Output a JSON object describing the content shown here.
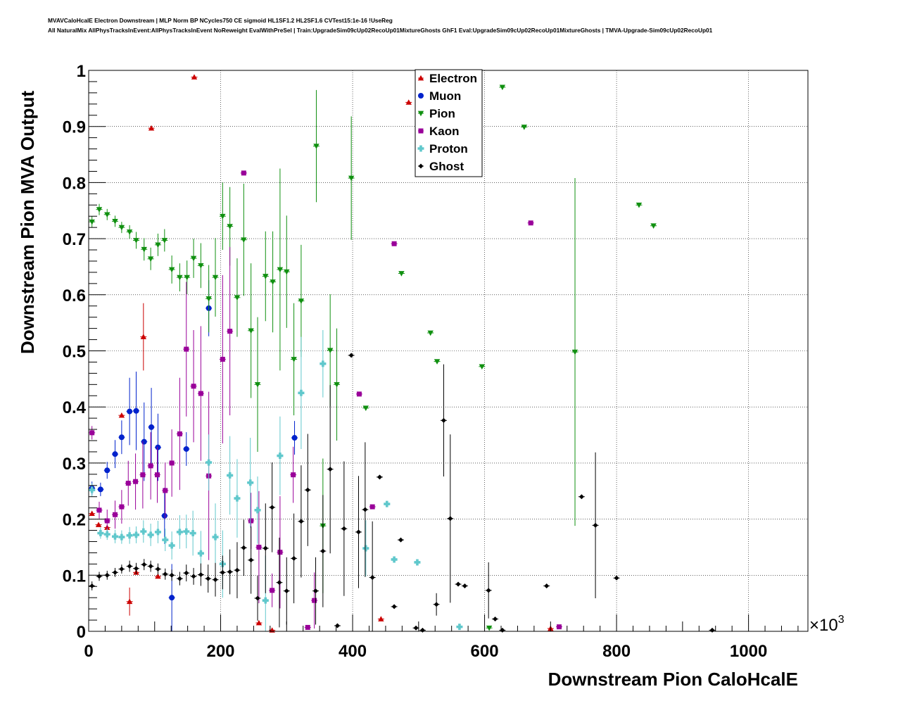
{
  "header": {
    "line1": "MVAVCaloHcalE Electron Downstream | MLP Norm BP NCycles750 CE sigmoid HL1SF1.2 HL2SF1.6 CVTest15:1e-16 !UseReg",
    "line2": "All NaturalMix AllPhysTracksInEvent:AllPhysTracksInEvent NoReweight EvalWithPreSel | Train:UpgradeSim09cUp02RecoUp01MixtureGhosts GhF1 Eval:UpgradeSim09cUp02RecoUp01MixtureGhosts | TMVA-Upgrade-Sim09cUp02RecoUp01"
  },
  "chart_data": {
    "type": "scatter",
    "title": "",
    "xlabel": "Downstream Pion CaloHcalE",
    "ylabel": "Downstream Pion MVA Output",
    "x_multiplier_label": "×10",
    "x_multiplier_exp": "3",
    "xlim": [
      0,
      1090
    ],
    "ylim": [
      0,
      1
    ],
    "xticks": [
      "0",
      "200",
      "400",
      "600",
      "800",
      "1000"
    ],
    "xtick_values": [
      0,
      200,
      400,
      600,
      800,
      1000
    ],
    "yticks": [
      "0",
      "0.1",
      "0.2",
      "0.3",
      "0.4",
      "0.5",
      "0.6",
      "0.7",
      "0.8",
      "0.9",
      "1"
    ],
    "ytick_values": [
      0,
      0.1,
      0.2,
      0.3,
      0.4,
      0.5,
      0.6,
      0.7,
      0.8,
      0.9,
      1
    ],
    "grid": true,
    "legend_position": "top-center",
    "series": [
      {
        "name": "Electron",
        "color": "#cc0000",
        "marker": "triangle-up",
        "points": [
          [
            5,
            0.21,
            0
          ],
          [
            15,
            0.19,
            0
          ],
          [
            28,
            0.185,
            0
          ],
          [
            50,
            0.385,
            0
          ],
          [
            62,
            0.053,
            0.025
          ],
          [
            72,
            0.105,
            0
          ],
          [
            83,
            0.525,
            0.06
          ],
          [
            95,
            0.897,
            0
          ],
          [
            105,
            0.098,
            0
          ],
          [
            160,
            0.988,
            0
          ],
          [
            258,
            0.015,
            0
          ],
          [
            278,
            0.002,
            0
          ],
          [
            443,
            0.022,
            0
          ],
          [
            485,
            0.943,
            0
          ],
          [
            700,
            0.005,
            0
          ]
        ]
      },
      {
        "name": "Muon",
        "color": "#0022cc",
        "marker": "circle",
        "points": [
          [
            5,
            0.255,
            0.012
          ],
          [
            18,
            0.253,
            0.012
          ],
          [
            28,
            0.287,
            0.015
          ],
          [
            40,
            0.316,
            0.025
          ],
          [
            50,
            0.346,
            0.03
          ],
          [
            62,
            0.392,
            0.06
          ],
          [
            72,
            0.393,
            0.07
          ],
          [
            84,
            0.338,
            0.07
          ],
          [
            95,
            0.364,
            0.07
          ],
          [
            105,
            0.328,
            0.06
          ],
          [
            115,
            0.206,
            0.05
          ],
          [
            126,
            0.06,
            0.06
          ],
          [
            148,
            0.325,
            0.03
          ],
          [
            182,
            0.576,
            0.05
          ],
          [
            312,
            0.345,
            0.03
          ]
        ]
      },
      {
        "name": "Pion",
        "color": "#109010",
        "marker": "triangle-down",
        "points": [
          [
            5,
            0.73,
            0.01
          ],
          [
            16,
            0.752,
            0.01
          ],
          [
            28,
            0.743,
            0.01
          ],
          [
            40,
            0.731,
            0.01
          ],
          [
            50,
            0.72,
            0.01
          ],
          [
            62,
            0.712,
            0.012
          ],
          [
            72,
            0.697,
            0.015
          ],
          [
            84,
            0.681,
            0.02
          ],
          [
            94,
            0.664,
            0.02
          ],
          [
            105,
            0.689,
            0.02
          ],
          [
            115,
            0.697,
            0.02
          ],
          [
            126,
            0.645,
            0.025
          ],
          [
            138,
            0.631,
            0.025
          ],
          [
            149,
            0.631,
            0.03
          ],
          [
            159,
            0.665,
            0.035
          ],
          [
            170,
            0.652,
            0.04
          ],
          [
            182,
            0.593,
            0.06
          ],
          [
            192,
            0.631,
            0.07
          ],
          [
            203,
            0.74,
            0.06
          ],
          [
            214,
            0.722,
            0.07
          ],
          [
            225,
            0.595,
            0.07
          ],
          [
            235,
            0.698,
            0.1
          ],
          [
            246,
            0.536,
            0.12
          ],
          [
            256,
            0.44,
            0.12
          ],
          [
            268,
            0.633,
            0.08
          ],
          [
            279,
            0.623,
            0.09
          ],
          [
            290,
            0.645,
            0.18
          ],
          [
            300,
            0.641,
            0.1
          ],
          [
            311,
            0.485,
            0.1
          ],
          [
            322,
            0.589,
            0.1
          ],
          [
            345,
            0.865,
            0.1
          ],
          [
            355,
            0.188,
            0.12
          ],
          [
            366,
            0.501,
            0.1
          ],
          [
            376,
            0.44,
            0.1
          ],
          [
            398,
            0.808,
            0.11
          ],
          [
            420,
            0.398,
            0
          ],
          [
            474,
            0.638,
            0
          ],
          [
            518,
            0.532,
            0
          ],
          [
            528,
            0.481,
            0
          ],
          [
            596,
            0.472,
            0
          ],
          [
            607,
            0.006,
            0
          ],
          [
            627,
            0.97,
            0
          ],
          [
            660,
            0.899,
            0
          ],
          [
            737,
            0.498,
            0.31
          ],
          [
            834,
            0.76,
            0
          ],
          [
            856,
            0.723,
            0
          ]
        ]
      },
      {
        "name": "Kaon",
        "color": "#990099",
        "marker": "square",
        "points": [
          [
            5,
            0.354,
            0.012
          ],
          [
            16,
            0.216,
            0.015
          ],
          [
            28,
            0.197,
            0.02
          ],
          [
            40,
            0.208,
            0.025
          ],
          [
            50,
            0.222,
            0.03
          ],
          [
            60,
            0.264,
            0.04
          ],
          [
            71,
            0.267,
            0.05
          ],
          [
            82,
            0.279,
            0.06
          ],
          [
            94,
            0.295,
            0.06
          ],
          [
            104,
            0.279,
            0.05
          ],
          [
            116,
            0.251,
            0.05
          ],
          [
            126,
            0.3,
            0.06
          ],
          [
            138,
            0.352,
            0.1
          ],
          [
            148,
            0.503,
            0.12
          ],
          [
            159,
            0.437,
            0.1
          ],
          [
            170,
            0.424,
            0.12
          ],
          [
            182,
            0.277,
            0.15
          ],
          [
            203,
            0.485,
            0.15
          ],
          [
            214,
            0.535,
            0.15
          ],
          [
            235,
            0.817,
            0
          ],
          [
            246,
            0.197,
            0.05
          ],
          [
            258,
            0.15,
            0.1
          ],
          [
            278,
            0.073,
            0.03
          ],
          [
            290,
            0.141,
            0.1
          ],
          [
            310,
            0.279,
            0.05
          ],
          [
            332,
            0.007,
            0
          ],
          [
            342,
            0.055,
            0.05
          ],
          [
            410,
            0.423,
            0
          ],
          [
            430,
            0.222,
            0
          ],
          [
            463,
            0.691,
            0
          ],
          [
            670,
            0.728,
            0
          ],
          [
            713,
            0.008,
            0
          ]
        ]
      },
      {
        "name": "Proton",
        "color": "#60c8cc",
        "marker": "cross",
        "points": [
          [
            5,
            0.252,
            0.012
          ],
          [
            18,
            0.175,
            0.01
          ],
          [
            28,
            0.173,
            0.01
          ],
          [
            40,
            0.169,
            0.012
          ],
          [
            50,
            0.168,
            0.012
          ],
          [
            62,
            0.171,
            0.015
          ],
          [
            72,
            0.172,
            0.015
          ],
          [
            83,
            0.178,
            0.02
          ],
          [
            94,
            0.172,
            0.02
          ],
          [
            105,
            0.177,
            0.02
          ],
          [
            116,
            0.163,
            0.02
          ],
          [
            126,
            0.153,
            0.025
          ],
          [
            138,
            0.177,
            0.03
          ],
          [
            148,
            0.178,
            0.03
          ],
          [
            158,
            0.175,
            0.04
          ],
          [
            170,
            0.139,
            0.04
          ],
          [
            182,
            0.301,
            0.05
          ],
          [
            192,
            0.168,
            0.06
          ],
          [
            203,
            0.12,
            0.06
          ],
          [
            214,
            0.278,
            0.07
          ],
          [
            225,
            0.237,
            0.07
          ],
          [
            245,
            0.265,
            0.08
          ],
          [
            256,
            0.216,
            0.06
          ],
          [
            268,
            0.055,
            0.08
          ],
          [
            290,
            0.313,
            0.07
          ],
          [
            322,
            0.425,
            0.1
          ],
          [
            355,
            0.477,
            0.06
          ],
          [
            420,
            0.148,
            0.05
          ],
          [
            452,
            0.227,
            0
          ],
          [
            463,
            0.128,
            0
          ],
          [
            498,
            0.123,
            0
          ],
          [
            562,
            0.008,
            0
          ]
        ]
      },
      {
        "name": "Ghost",
        "color": "#000000",
        "marker": "star",
        "points": [
          [
            5,
            0.081,
            0.008
          ],
          [
            16,
            0.098,
            0.008
          ],
          [
            28,
            0.1,
            0.008
          ],
          [
            40,
            0.105,
            0.008
          ],
          [
            50,
            0.111,
            0.008
          ],
          [
            62,
            0.116,
            0.01
          ],
          [
            72,
            0.112,
            0.01
          ],
          [
            84,
            0.119,
            0.01
          ],
          [
            94,
            0.116,
            0.01
          ],
          [
            105,
            0.111,
            0.01
          ],
          [
            116,
            0.102,
            0.01
          ],
          [
            126,
            0.1,
            0.01
          ],
          [
            138,
            0.094,
            0.012
          ],
          [
            148,
            0.104,
            0.015
          ],
          [
            159,
            0.098,
            0.015
          ],
          [
            170,
            0.101,
            0.02
          ],
          [
            181,
            0.094,
            0.025
          ],
          [
            192,
            0.092,
            0.03
          ],
          [
            203,
            0.105,
            0.03
          ],
          [
            214,
            0.106,
            0.04
          ],
          [
            225,
            0.109,
            0.05
          ],
          [
            235,
            0.149,
            0.05
          ],
          [
            246,
            0.127,
            0.06
          ],
          [
            256,
            0.059,
            0.04
          ],
          [
            268,
            0.148,
            0.08
          ],
          [
            278,
            0.221,
            0.08
          ],
          [
            289,
            0.087,
            0.08
          ],
          [
            300,
            0.072,
            0.06
          ],
          [
            311,
            0.13,
            0.08
          ],
          [
            322,
            0.196,
            0.1
          ],
          [
            332,
            0.252,
            0.1
          ],
          [
            344,
            0.072,
            0.06
          ],
          [
            355,
            0.143,
            0.1
          ],
          [
            366,
            0.289,
            0.15
          ],
          [
            377,
            0.01,
            0
          ],
          [
            387,
            0.183,
            0.12
          ],
          [
            398,
            0.492,
            0
          ],
          [
            409,
            0.177,
            0.1
          ],
          [
            419,
            0.217,
            0.12
          ],
          [
            430,
            0.096,
            0.1
          ],
          [
            441,
            0.275,
            0
          ],
          [
            463,
            0.044,
            0
          ],
          [
            473,
            0.163,
            0
          ],
          [
            496,
            0.006,
            0
          ],
          [
            506,
            0.002,
            0
          ],
          [
            527,
            0.048,
            0.02
          ],
          [
            538,
            0.376,
            0.1
          ],
          [
            548,
            0.201,
            0.15
          ],
          [
            560,
            0.084,
            0
          ],
          [
            570,
            0.081,
            0
          ],
          [
            606,
            0.073,
            0.05
          ],
          [
            616,
            0.022,
            0
          ],
          [
            627,
            0.002,
            0
          ],
          [
            694,
            0.081,
            0
          ],
          [
            747,
            0.24,
            0
          ],
          [
            768,
            0.189,
            0.13
          ],
          [
            800,
            0.095,
            0
          ],
          [
            945,
            0.002,
            0
          ]
        ]
      }
    ]
  }
}
